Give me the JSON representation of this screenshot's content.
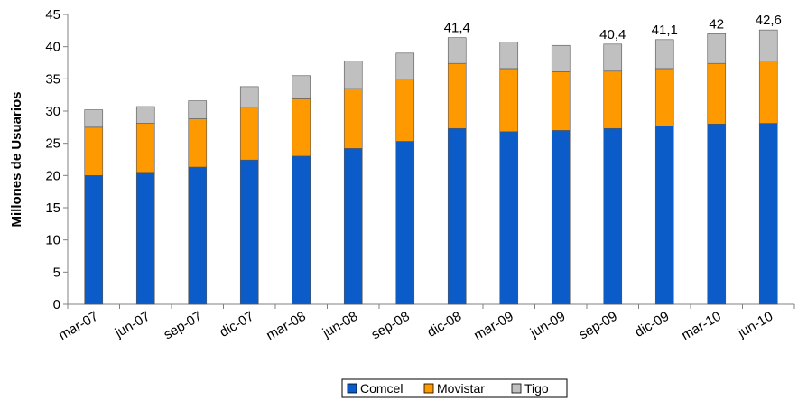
{
  "chart_data": {
    "type": "bar",
    "stacked": true,
    "title": "",
    "xlabel": "",
    "ylabel": "Millones de Usuarios",
    "ylim": [
      0,
      45
    ],
    "yticks": [
      "0",
      "5",
      "10",
      "15",
      "20",
      "25",
      "30",
      "35",
      "40",
      "45"
    ],
    "grid": false,
    "legend_position": "bottom",
    "categories": [
      "mar-07",
      "jun-07",
      "sep-07",
      "dic-07",
      "mar-08",
      "jun-08",
      "sep-08",
      "dic-08",
      "mar-09",
      "jun-09",
      "sep-09",
      "dic-09",
      "mar-10",
      "jun-10"
    ],
    "series": [
      {
        "name": "Comcel",
        "color": "#0b5cc8",
        "values": [
          20.0,
          20.5,
          21.3,
          22.4,
          23.0,
          24.2,
          25.3,
          27.3,
          26.8,
          27.0,
          27.3,
          27.7,
          28.0,
          28.1
        ]
      },
      {
        "name": "Movistar",
        "color": "#ff9900",
        "values": [
          7.5,
          7.6,
          7.5,
          8.2,
          8.9,
          9.3,
          9.7,
          10.1,
          9.8,
          9.1,
          8.9,
          8.9,
          9.4,
          9.7
        ]
      },
      {
        "name": "Tigo",
        "color": "#c0c0c0",
        "values": [
          2.7,
          2.6,
          2.8,
          3.2,
          3.6,
          4.3,
          4.0,
          4.0,
          4.1,
          4.1,
          4.2,
          4.5,
          4.6,
          4.8
        ]
      }
    ],
    "data_labels": [
      "",
      "",
      "",
      "",
      "",
      "",
      "",
      "41,4",
      "",
      "",
      "40,4",
      "41,1",
      "42",
      "42,6"
    ]
  }
}
